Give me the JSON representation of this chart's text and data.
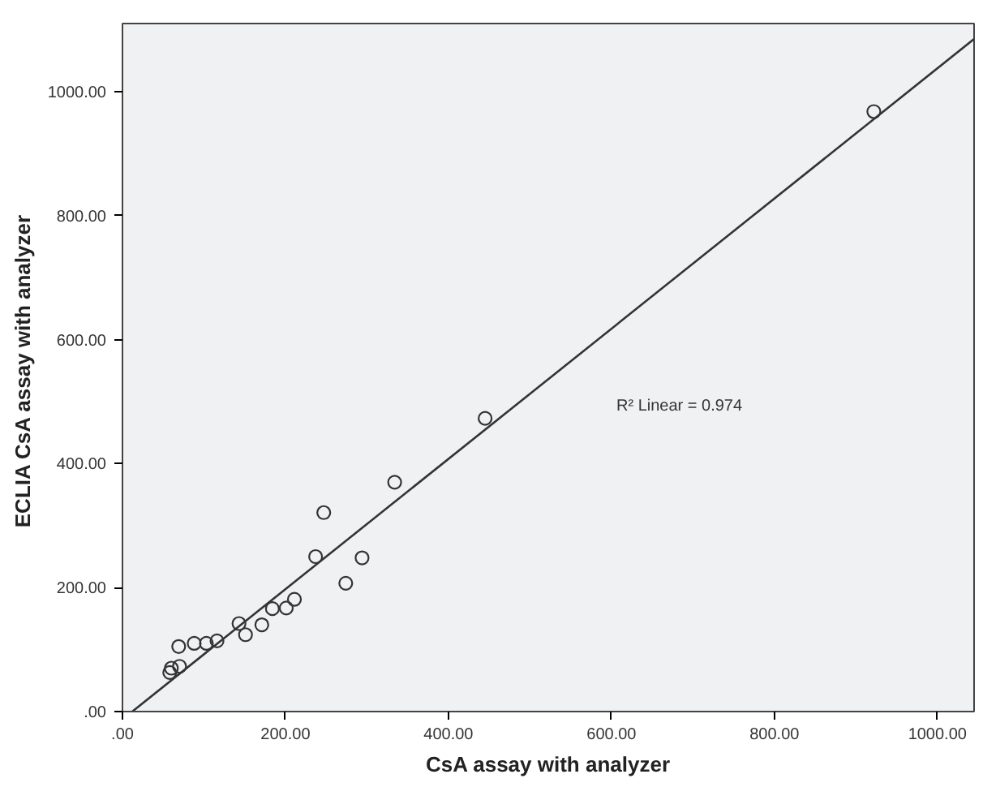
{
  "chart_data": {
    "type": "scatter",
    "xlabel": "CsA assay with analyzer",
    "ylabel": "ECLIA  CsA assay with analyzer",
    "xlim": [
      0,
      1045
    ],
    "ylim": [
      0,
      1110
    ],
    "xticks": [
      {
        "value": 0,
        "label": ".00"
      },
      {
        "value": 200,
        "label": "200.00"
      },
      {
        "value": 400,
        "label": "400.00"
      },
      {
        "value": 600,
        "label": "600.00"
      },
      {
        "value": 800,
        "label": "800.00"
      },
      {
        "value": 1000,
        "label": "1000.00"
      }
    ],
    "yticks": [
      {
        "value": 0,
        "label": ".00"
      },
      {
        "value": 200,
        "label": "200.00"
      },
      {
        "value": 400,
        "label": "400.00"
      },
      {
        "value": 600,
        "label": "600.00"
      },
      {
        "value": 800,
        "label": "800.00"
      },
      {
        "value": 1000,
        "label": "1000.00"
      }
    ],
    "marker": "circle",
    "grid": false,
    "series": [
      {
        "color": "#333333",
        "x": [
          922,
          445,
          334,
          247,
          237,
          294,
          274,
          211,
          201,
          184,
          171,
          143,
          151,
          116,
          103,
          88,
          69,
          70,
          60,
          58
        ],
        "values": [
          968,
          473,
          370,
          321,
          250,
          248,
          207,
          181,
          167,
          166,
          140,
          142,
          124,
          114,
          110,
          110,
          105,
          73,
          70,
          63
        ]
      },
      {
        "type": "line",
        "marker": "none",
        "color": "#333333",
        "x": [
          12,
          1045
        ],
        "values": [
          0,
          1085
        ]
      }
    ],
    "annotations": [
      "R² Linear = 0.974"
    ]
  }
}
